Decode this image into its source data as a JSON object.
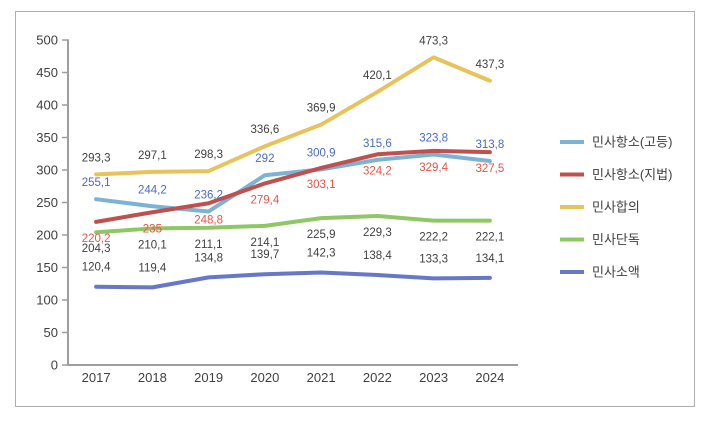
{
  "chart_data": {
    "type": "line",
    "title": "",
    "categories": [
      "2017",
      "2018",
      "2019",
      "2020",
      "2021",
      "2022",
      "2023",
      "2024"
    ],
    "series": [
      {
        "name": "민사항소(고등)",
        "color": "#7ab3d4",
        "label_color": "#4a6bbf",
        "label_dy": -17,
        "values": [
          255.1,
          244.2,
          236.2,
          292,
          300.9,
          315.6,
          323.8,
          313.8
        ]
      },
      {
        "name": "민사항소(지법)",
        "color": "#c0504d",
        "label_color": "#e65549",
        "label_dy": 16,
        "values": [
          220.2,
          235,
          248.8,
          279.4,
          303.1,
          324.2,
          329.4,
          327.5
        ]
      },
      {
        "name": "민사합의",
        "color": "#e8c35c",
        "label_color": "#3f3f3f",
        "label_dy": -17,
        "values": [
          293.3,
          297.1,
          298.3,
          336.6,
          369.9,
          420.1,
          473.3,
          437.3
        ]
      },
      {
        "name": "민사단독",
        "color": "#8fc765",
        "label_color": "#3f3f3f",
        "label_dy": 16,
        "values": [
          204.3,
          210.1,
          211.1,
          214.1,
          225.9,
          229.3,
          222.2,
          222.1
        ]
      },
      {
        "name": "민사소액",
        "color": "#6877c6",
        "label_color": "#3f3f3f",
        "label_dy": -20,
        "values": [
          120.4,
          119.4,
          134.8,
          139.7,
          142.3,
          138.4,
          133.3,
          134.1
        ]
      }
    ],
    "y_ticks": [
      0,
      50,
      100,
      150,
      200,
      250,
      300,
      350,
      400,
      450,
      500
    ],
    "ylim": [
      0,
      500
    ],
    "decimal_separator": ",",
    "grid": false,
    "legend_position": "right",
    "axis_color": "#9e9e9e",
    "tick_label_color": "#3f3f3f",
    "legend_text_color": "#3f3f3f",
    "draw_order": [
      4,
      3,
      2,
      0,
      1
    ]
  }
}
